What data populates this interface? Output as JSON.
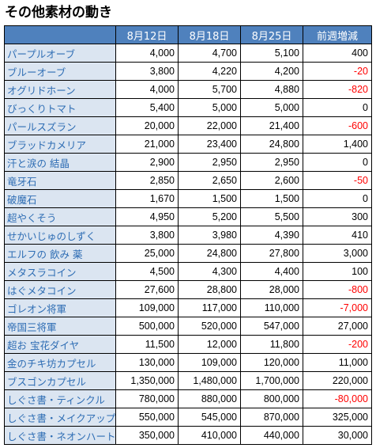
{
  "title": "その他素材の動き",
  "colors": {
    "header_bg": "#4f81bd",
    "name_bg": "#dbe5f1",
    "name_text": "#2e6db4",
    "negative": "#ff0000"
  },
  "headers": [
    "",
    "8月12日",
    "8月18日",
    "8月25日",
    "前週増減"
  ],
  "rows": [
    {
      "name": "パープルオーブ",
      "v1": "4,000",
      "v2": "4,700",
      "v3": "5,100",
      "diff": "400"
    },
    {
      "name": "ブルーオーブ",
      "v1": "3,800",
      "v2": "4,220",
      "v3": "4,200",
      "diff": "-20"
    },
    {
      "name": "オグリドホーン",
      "v1": "4,000",
      "v2": "5,700",
      "v3": "4,880",
      "diff": "-820"
    },
    {
      "name": "びっくりトマト",
      "v1": "5,400",
      "v2": "5,000",
      "v3": "5,000",
      "diff": "0"
    },
    {
      "name": "パールスズラン",
      "v1": "20,000",
      "v2": "22,000",
      "v3": "21,400",
      "diff": "-600"
    },
    {
      "name": "ブラッドカメリア",
      "v1": "21,000",
      "v2": "23,400",
      "v3": "24,800",
      "diff": "1,400"
    },
    {
      "name": "汗と涙の 結晶",
      "v1": "2,900",
      "v2": "2,950",
      "v3": "2,950",
      "diff": "0"
    },
    {
      "name": "竜牙石",
      "v1": "2,850",
      "v2": "2,650",
      "v3": "2,600",
      "diff": "-50"
    },
    {
      "name": "破魔石",
      "v1": "1,670",
      "v2": "1,500",
      "v3": "1,500",
      "diff": "0"
    },
    {
      "name": "超やくそう",
      "v1": "4,950",
      "v2": "5,200",
      "v3": "5,500",
      "diff": "300"
    },
    {
      "name": "せかいじゅのしずく",
      "v1": "3,800",
      "v2": "3,980",
      "v3": "4,390",
      "diff": "410"
    },
    {
      "name": "エルフの 飲み 薬",
      "v1": "25,000",
      "v2": "24,800",
      "v3": "27,800",
      "diff": "3,000"
    },
    {
      "name": "メタスラコイン",
      "v1": "4,500",
      "v2": "4,300",
      "v3": "4,400",
      "diff": "100"
    },
    {
      "name": "はぐメタコイン",
      "v1": "27,600",
      "v2": "28,800",
      "v3": "28,000",
      "diff": "-800"
    },
    {
      "name": "ゴレオン将軍",
      "v1": "109,000",
      "v2": "117,000",
      "v3": "110,000",
      "diff": "-7,000"
    },
    {
      "name": "帝国三将軍",
      "v1": "500,000",
      "v2": "520,000",
      "v3": "547,000",
      "diff": "27,000"
    },
    {
      "name": "超お 宝花ダイヤ",
      "v1": "11,500",
      "v2": "12,000",
      "v3": "11,800",
      "diff": "-200"
    },
    {
      "name": "金のチキ坊カプセル",
      "v1": "130,000",
      "v2": "109,000",
      "v3": "120,000",
      "diff": "11,000"
    },
    {
      "name": "ブスゴンカプセル",
      "v1": "1,350,000",
      "v2": "1,480,000",
      "v3": "1,700,000",
      "diff": "220,000"
    },
    {
      "name": "しぐさ書・ティンクル",
      "v1": "780,000",
      "v2": "880,000",
      "v3": "800,000",
      "diff": "-80,000"
    },
    {
      "name": "しぐさ書・メイクアップ",
      "v1": "550,000",
      "v2": "545,000",
      "v3": "870,000",
      "diff": "325,000"
    },
    {
      "name": "しぐさ書・ネオンハート",
      "v1": "350,000",
      "v2": "410,000",
      "v3": "440,000",
      "diff": "30,000"
    }
  ]
}
